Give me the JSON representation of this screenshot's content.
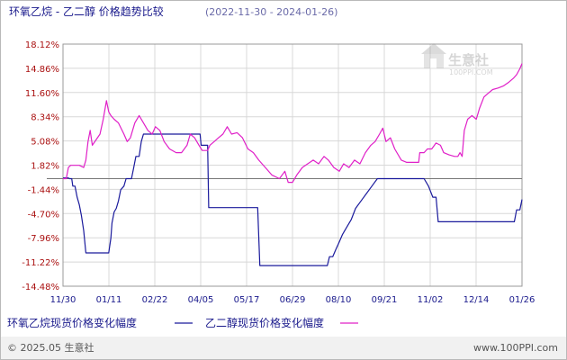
{
  "header": {
    "title": "环氧乙烷 - 乙二醇 价格趋势比较",
    "date_range": "(2022-11-30 - 2024-01-26)"
  },
  "watermark": {
    "brand_text": "生意社",
    "url_text": "100PPI.COM"
  },
  "footer": {
    "left": "© 2025.05 生意社",
    "right": "www.100PPI.com"
  },
  "colors": {
    "series_eo": "#1a1a9c",
    "series_meg": "#e020c8",
    "grid": "#d8d8d8",
    "axis_frame": "#999999",
    "zero_line": "#777777"
  },
  "chart_data": {
    "type": "line",
    "title": "环氧乙烷 - 乙二醇 价格趋势比较",
    "xlabel": "",
    "ylabel": "",
    "x_start": "2022-11-30",
    "x_end": "2024-01-26",
    "x_ticks": [
      "11/30",
      "01/11",
      "02/22",
      "04/05",
      "05/17",
      "06/29",
      "08/10",
      "09/21",
      "11/02",
      "12/14",
      "01/26"
    ],
    "y_ticks": [
      "18.12%",
      "14.86%",
      "11.60%",
      "8.34%",
      "5.08%",
      "1.82%",
      "-1.44%",
      "-4.70%",
      "-7.96%",
      "-11.22%",
      "-14.48%"
    ],
    "ylim": [
      -14.48,
      18.12
    ],
    "grid": true,
    "series": [
      {
        "name": "环氧乙烷现货价格变化幅度",
        "color": "#1a1a9c",
        "points": [
          [
            "2022-11-30",
            0.1
          ],
          [
            "2022-12-05",
            0.1
          ],
          [
            "2022-12-06",
            0.0
          ],
          [
            "2022-12-08",
            0.0
          ],
          [
            "2022-12-09",
            -1.0
          ],
          [
            "2022-12-11",
            -1.0
          ],
          [
            "2022-12-13",
            -2.5
          ],
          [
            "2022-12-15",
            -3.5
          ],
          [
            "2022-12-17",
            -5.0
          ],
          [
            "2022-12-19",
            -7.0
          ],
          [
            "2022-12-21",
            -10.0
          ],
          [
            "2023-01-11",
            -10.0
          ],
          [
            "2023-01-13",
            -8.0
          ],
          [
            "2023-01-14",
            -6.0
          ],
          [
            "2023-01-16",
            -4.5
          ],
          [
            "2023-01-18",
            -4.0
          ],
          [
            "2023-01-20",
            -3.0
          ],
          [
            "2023-01-22",
            -1.5
          ],
          [
            "2023-01-25",
            -1.0
          ],
          [
            "2023-01-27",
            0.0
          ],
          [
            "2023-02-01",
            0.0
          ],
          [
            "2023-02-03",
            1.5
          ],
          [
            "2023-02-05",
            3.0
          ],
          [
            "2023-02-08",
            3.0
          ],
          [
            "2023-02-10",
            5.0
          ],
          [
            "2023-02-12",
            6.0
          ],
          [
            "2023-04-05",
            6.0
          ],
          [
            "2023-04-06",
            4.5
          ],
          [
            "2023-04-12",
            4.5
          ],
          [
            "2023-04-13",
            -3.9
          ],
          [
            "2023-05-28",
            -3.9
          ],
          [
            "2023-05-30",
            -11.7
          ],
          [
            "2023-07-31",
            -11.7
          ],
          [
            "2023-08-02",
            -10.5
          ],
          [
            "2023-08-05",
            -10.5
          ],
          [
            "2023-08-08",
            -9.5
          ],
          [
            "2023-08-11",
            -8.5
          ],
          [
            "2023-08-14",
            -7.5
          ],
          [
            "2023-08-18",
            -6.5
          ],
          [
            "2023-08-22",
            -5.5
          ],
          [
            "2023-08-26",
            -4.0
          ],
          [
            "2023-08-31",
            -3.0
          ],
          [
            "2023-09-05",
            -2.0
          ],
          [
            "2023-09-10",
            -1.0
          ],
          [
            "2023-09-15",
            0.0
          ],
          [
            "2023-10-28",
            0.0
          ],
          [
            "2023-11-01",
            -1.0
          ],
          [
            "2023-11-05",
            -2.5
          ],
          [
            "2023-11-08",
            -2.5
          ],
          [
            "2023-11-10",
            -5.8
          ],
          [
            "2024-01-19",
            -5.8
          ],
          [
            "2024-01-21",
            -4.2
          ],
          [
            "2024-01-24",
            -4.2
          ],
          [
            "2024-01-26",
            -2.8
          ]
        ]
      },
      {
        "name": "乙二醇现货价格变化幅度",
        "color": "#e020c8",
        "points": [
          [
            "2022-11-30",
            0.0
          ],
          [
            "2022-12-03",
            0.0
          ],
          [
            "2022-12-05",
            1.5
          ],
          [
            "2022-12-07",
            1.8
          ],
          [
            "2022-12-15",
            1.8
          ],
          [
            "2022-12-19",
            1.5
          ],
          [
            "2022-12-21",
            2.5
          ],
          [
            "2022-12-23",
            5.0
          ],
          [
            "2022-12-25",
            6.5
          ],
          [
            "2022-12-27",
            4.5
          ],
          [
            "2023-01-03",
            6.0
          ],
          [
            "2023-01-06",
            8.0
          ],
          [
            "2023-01-09",
            10.5
          ],
          [
            "2023-01-11",
            9.0
          ],
          [
            "2023-01-13",
            8.5
          ],
          [
            "2023-01-16",
            8.0
          ],
          [
            "2023-01-20",
            7.5
          ],
          [
            "2023-01-25",
            6.0
          ],
          [
            "2023-01-28",
            5.0
          ],
          [
            "2023-01-31",
            5.5
          ],
          [
            "2023-02-04",
            7.5
          ],
          [
            "2023-02-08",
            8.5
          ],
          [
            "2023-02-12",
            7.5
          ],
          [
            "2023-02-16",
            6.5
          ],
          [
            "2023-02-20",
            6.0
          ],
          [
            "2023-02-23",
            7.0
          ],
          [
            "2023-02-27",
            6.5
          ],
          [
            "2023-03-03",
            5.0
          ],
          [
            "2023-03-08",
            4.0
          ],
          [
            "2023-03-14",
            3.5
          ],
          [
            "2023-03-19",
            3.5
          ],
          [
            "2023-03-24",
            4.5
          ],
          [
            "2023-03-27",
            6.0
          ],
          [
            "2023-03-31",
            5.5
          ],
          [
            "2023-04-04",
            4.5
          ],
          [
            "2023-04-07",
            3.8
          ],
          [
            "2023-04-12",
            3.8
          ],
          [
            "2023-04-14",
            4.5
          ],
          [
            "2023-04-18",
            5.0
          ],
          [
            "2023-04-22",
            5.5
          ],
          [
            "2023-04-26",
            6.0
          ],
          [
            "2023-04-30",
            7.0
          ],
          [
            "2023-05-04",
            6.0
          ],
          [
            "2023-05-09",
            6.2
          ],
          [
            "2023-05-14",
            5.5
          ],
          [
            "2023-05-19",
            4.0
          ],
          [
            "2023-05-24",
            3.5
          ],
          [
            "2023-05-29",
            2.5
          ],
          [
            "2023-06-04",
            1.5
          ],
          [
            "2023-06-10",
            0.5
          ],
          [
            "2023-06-17",
            0.0
          ],
          [
            "2023-06-22",
            1.0
          ],
          [
            "2023-06-25",
            -0.5
          ],
          [
            "2023-06-29",
            -0.5
          ],
          [
            "2023-07-03",
            0.5
          ],
          [
            "2023-07-08",
            1.5
          ],
          [
            "2023-07-13",
            2.0
          ],
          [
            "2023-07-18",
            2.5
          ],
          [
            "2023-07-23",
            2.0
          ],
          [
            "2023-07-28",
            3.0
          ],
          [
            "2023-08-01",
            2.5
          ],
          [
            "2023-08-06",
            1.5
          ],
          [
            "2023-08-11",
            1.0
          ],
          [
            "2023-08-15",
            2.0
          ],
          [
            "2023-08-20",
            1.5
          ],
          [
            "2023-08-25",
            2.5
          ],
          [
            "2023-08-30",
            2.0
          ],
          [
            "2023-09-04",
            3.5
          ],
          [
            "2023-09-09",
            4.5
          ],
          [
            "2023-09-13",
            5.0
          ],
          [
            "2023-09-17",
            6.0
          ],
          [
            "2023-09-20",
            6.8
          ],
          [
            "2023-09-23",
            5.0
          ],
          [
            "2023-09-27",
            5.5
          ],
          [
            "2023-10-01",
            4.0
          ],
          [
            "2023-10-07",
            2.5
          ],
          [
            "2023-10-12",
            2.2
          ],
          [
            "2023-10-19",
            2.2
          ],
          [
            "2023-10-23",
            2.2
          ],
          [
            "2023-10-24",
            3.5
          ],
          [
            "2023-10-28",
            3.5
          ],
          [
            "2023-10-31",
            4.0
          ],
          [
            "2023-11-04",
            4.0
          ],
          [
            "2023-11-08",
            4.8
          ],
          [
            "2023-11-12",
            4.5
          ],
          [
            "2023-11-15",
            3.5
          ],
          [
            "2023-11-20",
            3.2
          ],
          [
            "2023-11-25",
            3.0
          ],
          [
            "2023-11-28",
            3.0
          ],
          [
            "2023-11-30",
            3.5
          ],
          [
            "2023-12-02",
            3.0
          ],
          [
            "2023-12-04",
            6.5
          ],
          [
            "2023-12-07",
            8.0
          ],
          [
            "2023-12-11",
            8.5
          ],
          [
            "2023-12-15",
            8.0
          ],
          [
            "2023-12-18",
            9.5
          ],
          [
            "2023-12-22",
            11.0
          ],
          [
            "2023-12-26",
            11.5
          ],
          [
            "2023-12-30",
            12.0
          ],
          [
            "2024-01-04",
            12.2
          ],
          [
            "2024-01-09",
            12.5
          ],
          [
            "2024-01-14",
            13.0
          ],
          [
            "2024-01-18",
            13.5
          ],
          [
            "2024-01-21",
            14.0
          ],
          [
            "2024-01-24",
            14.8
          ],
          [
            "2024-01-26",
            15.5
          ]
        ]
      }
    ]
  }
}
